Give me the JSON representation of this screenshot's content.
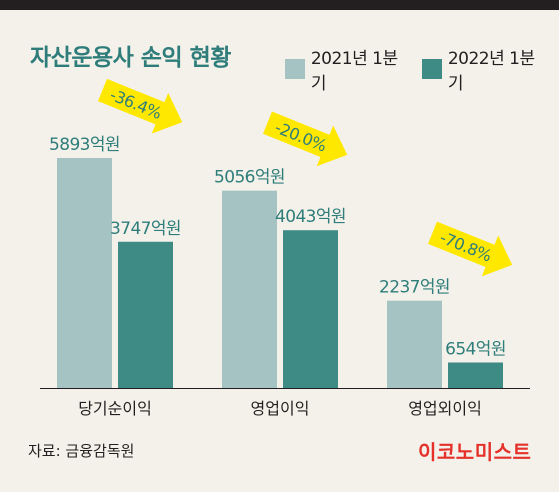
{
  "title": "자산운용사 손익 현황",
  "legend": [
    {
      "label": "2021년 1분기",
      "color": "#a5c3c3"
    },
    {
      "label": "2022년 1분기",
      "color": "#3e8b86"
    }
  ],
  "source": "자료: 금융감독원",
  "logo": "이코노미스트",
  "colors": {
    "accent": "#2e7d7a",
    "arrow": "#ffe800",
    "text": "#231f20",
    "background": "#f4f1ea"
  },
  "chart_data": {
    "type": "bar",
    "title": "자산운용사 손익 현황",
    "categories": [
      "당기순이익",
      "영업이익",
      "영업외이익"
    ],
    "series": [
      {
        "name": "2021년 1분기",
        "values": [
          5893,
          5056,
          2237
        ],
        "labels": [
          "5893억원",
          "5056억원",
          "2237억원"
        ]
      },
      {
        "name": "2022년 1분기",
        "values": [
          3747,
          4043,
          654
        ],
        "labels": [
          "3747억원",
          "4043억원",
          "654억원"
        ]
      }
    ],
    "changes": [
      "-36.4%",
      "-20.0%",
      "-70.8%"
    ],
    "xlabel": "",
    "ylabel": "",
    "ylim": [
      0,
      6500
    ],
    "grid": false,
    "legend_position": "top-right"
  }
}
